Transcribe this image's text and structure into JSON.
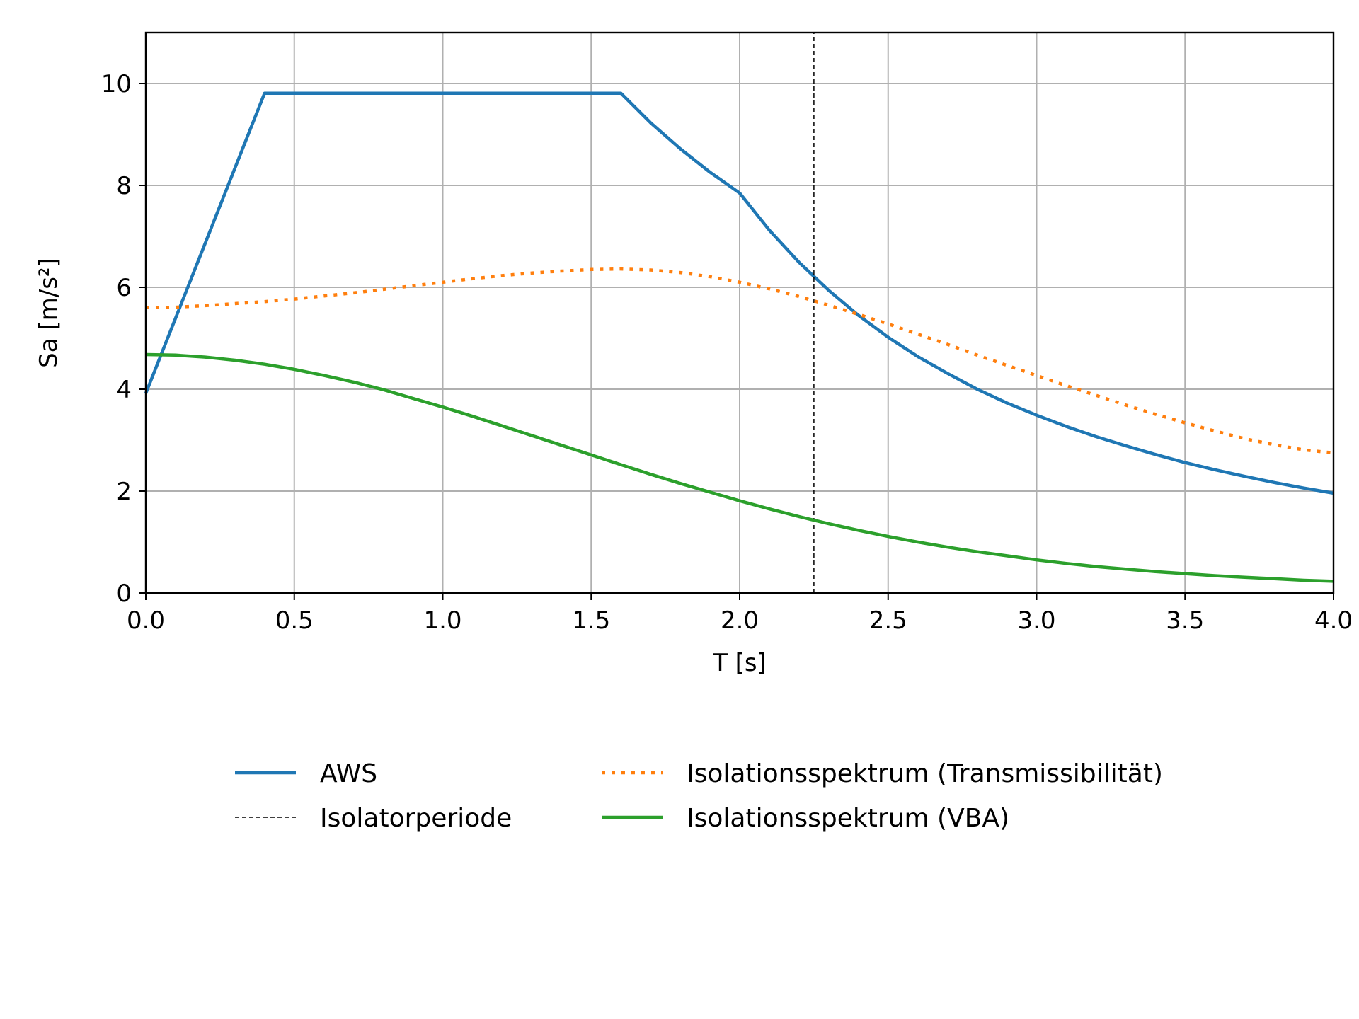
{
  "chart_data": {
    "type": "line",
    "xlabel": "T [s]",
    "ylabel": "Sa [m/s²]",
    "xlim": [
      0,
      4.0
    ],
    "ylim": [
      0,
      11
    ],
    "x_ticks": [
      "0.0",
      "0.5",
      "1.0",
      "1.5",
      "2.0",
      "2.5",
      "3.0",
      "3.5",
      "4.0"
    ],
    "y_ticks": [
      "0",
      "2",
      "4",
      "6",
      "8",
      "10"
    ],
    "grid": true,
    "legend_placement": "bottom",
    "series": [
      {
        "name": "AWS",
        "color": "#1f77b4",
        "style": "solid",
        "x": [
          0.0,
          0.4,
          1.6,
          1.7,
          1.8,
          1.9,
          2.0,
          2.1,
          2.2,
          2.3,
          2.4,
          2.5,
          2.6,
          2.7,
          2.8,
          2.9,
          3.0,
          3.1,
          3.2,
          3.3,
          3.4,
          3.5,
          3.6,
          3.7,
          3.8,
          3.9,
          4.0
        ],
        "y": [
          3.92,
          9.81,
          9.81,
          9.23,
          8.72,
          8.26,
          7.85,
          7.12,
          6.49,
          5.94,
          5.45,
          5.02,
          4.64,
          4.31,
          4.0,
          3.73,
          3.49,
          3.27,
          3.07,
          2.89,
          2.72,
          2.56,
          2.42,
          2.29,
          2.17,
          2.06,
          1.96
        ]
      },
      {
        "name": "Isolatorperiode",
        "color": "#000000",
        "style": "dashed",
        "x": [
          2.25,
          2.25
        ],
        "y": [
          0,
          11
        ]
      },
      {
        "name": "Isolationsspektrum (Transmissibilität)",
        "color": "#ff7f0e",
        "style": "dotted",
        "x": [
          0.0,
          0.1,
          0.2,
          0.3,
          0.4,
          0.5,
          0.6,
          0.7,
          0.8,
          0.9,
          1.0,
          1.1,
          1.2,
          1.3,
          1.4,
          1.5,
          1.6,
          1.7,
          1.8,
          1.9,
          2.0,
          2.1,
          2.2,
          2.3,
          2.4,
          2.5,
          2.6,
          2.7,
          2.8,
          2.9,
          3.0,
          3.1,
          3.2,
          3.3,
          3.4,
          3.5,
          3.6,
          3.7,
          3.8,
          3.9,
          4.0
        ],
        "y": [
          5.6,
          5.61,
          5.64,
          5.68,
          5.72,
          5.77,
          5.83,
          5.89,
          5.96,
          6.03,
          6.1,
          6.17,
          6.23,
          6.28,
          6.32,
          6.35,
          6.36,
          6.34,
          6.29,
          6.21,
          6.1,
          5.97,
          5.82,
          5.65,
          5.47,
          5.28,
          5.08,
          4.88,
          4.67,
          4.47,
          4.27,
          4.07,
          3.88,
          3.69,
          3.51,
          3.34,
          3.18,
          3.03,
          2.91,
          2.81,
          2.75
        ]
      },
      {
        "name": "Isolationsspektrum (VBA)",
        "color": "#2ca02c",
        "style": "solid",
        "x": [
          0.0,
          0.1,
          0.2,
          0.3,
          0.4,
          0.5,
          0.6,
          0.7,
          0.8,
          0.9,
          1.0,
          1.1,
          1.2,
          1.3,
          1.4,
          1.5,
          1.6,
          1.7,
          1.8,
          1.9,
          2.0,
          2.1,
          2.2,
          2.3,
          2.4,
          2.5,
          2.6,
          2.7,
          2.8,
          2.9,
          3.0,
          3.1,
          3.2,
          3.3,
          3.4,
          3.5,
          3.6,
          3.7,
          3.8,
          3.9,
          4.0
        ],
        "y": [
          4.68,
          4.67,
          4.63,
          4.57,
          4.49,
          4.39,
          4.27,
          4.14,
          3.99,
          3.82,
          3.65,
          3.47,
          3.28,
          3.09,
          2.9,
          2.71,
          2.52,
          2.33,
          2.15,
          1.98,
          1.81,
          1.65,
          1.5,
          1.36,
          1.23,
          1.11,
          1.0,
          0.9,
          0.81,
          0.73,
          0.65,
          0.58,
          0.52,
          0.47,
          0.42,
          0.38,
          0.34,
          0.31,
          0.28,
          0.25,
          0.23
        ]
      }
    ]
  }
}
